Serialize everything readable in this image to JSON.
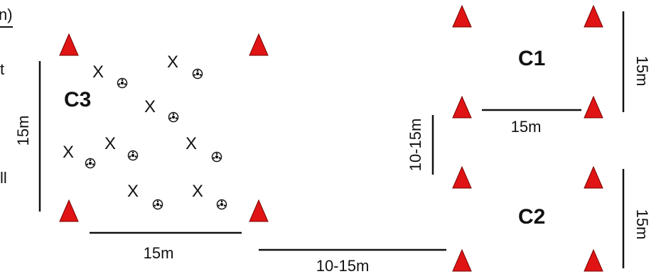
{
  "colors": {
    "cone": "#e01414",
    "cone_edge": "#7a0000",
    "line": "#111111",
    "ball": "#111111"
  },
  "zones": {
    "c1": "C1",
    "c2": "C2",
    "c3": "C3"
  },
  "measurements": {
    "c3_width": "15m",
    "c3_height": "15m",
    "c1_width": "15m",
    "c1_height": "15m",
    "c2_height": "15m",
    "gap_vertical": "10-15m",
    "gap_horizontal": "10-15m"
  },
  "player_marker": "X",
  "edge_text": {
    "top": "n)",
    "middle": "t",
    "bottom": "ll"
  },
  "icons": {
    "cone": "cone-icon",
    "ball": "soccer-ball-icon"
  }
}
